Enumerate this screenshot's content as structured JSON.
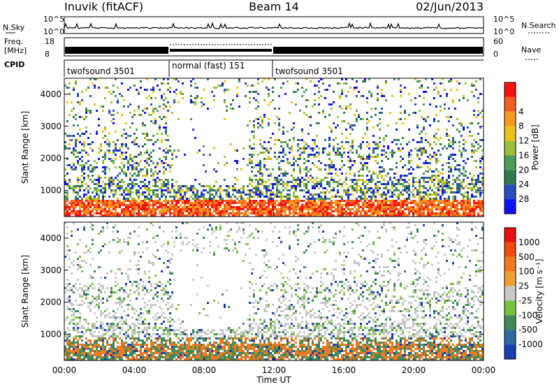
{
  "header": {
    "station": "Inuvik (fitACF)",
    "beam": "Beam 14",
    "date": "02/Jun/2013"
  },
  "status_panels": {
    "nsky_label": "N.Sky",
    "nsearch_label": "N.Search",
    "nsky_ticks": [
      "10^5",
      "10^0"
    ],
    "nsearch_ticks": [
      "10^5",
      "10^0"
    ],
    "freq_label_1": "Freq.",
    "freq_label_2": "[MHz]",
    "freq_ticks": [
      "18",
      "8"
    ],
    "nave_label": "Nave",
    "nave_ticks": [
      "60",
      "0"
    ],
    "cpid_label": "CPID",
    "cpid_segments": [
      {
        "label": "twofsound 3501",
        "start_hr": 0,
        "end_hr": 6
      },
      {
        "label": "normal (fast) 151",
        "start_hr": 6,
        "end_hr": 12
      },
      {
        "label": "twofsound 3501",
        "start_hr": 12,
        "end_hr": 24
      }
    ]
  },
  "x_axis": {
    "label": "Time UT",
    "ticks": [
      "00:00",
      "04:00",
      "08:00",
      "12:00",
      "16:00",
      "20:00",
      "00:00"
    ],
    "range_hr": [
      0,
      24
    ]
  },
  "chart_data": [
    {
      "type": "heatmap",
      "name": "power",
      "ylabel": "Slant Range [km]",
      "yticks": [
        1000,
        2000,
        3000,
        4000
      ],
      "ylim": [
        180,
        4500
      ],
      "xlim": [
        0,
        24
      ],
      "colorbar": {
        "label": "Power [dB]",
        "ticks": [
          4,
          8,
          12,
          16,
          20,
          24,
          28
        ],
        "colors": [
          "#1010ff",
          "#2a4fb8",
          "#2f7a52",
          "#4f9a5a",
          "#9bc13a",
          "#ecc01a",
          "#f29a22",
          "#f06020",
          "#ff1010"
        ]
      }
    },
    {
      "type": "heatmap",
      "name": "velocity",
      "ylabel": "Slant Range [km]",
      "yticks": [
        1000,
        2000,
        3000,
        4000
      ],
      "ylim": [
        180,
        4500
      ],
      "xlim": [
        0,
        24
      ],
      "colorbar": {
        "label": "Velocity [m s⁻¹]",
        "ticks": [
          "1000",
          "500",
          "100",
          "25",
          "-25",
          "-100",
          "-500",
          "-1000"
        ],
        "colors": [
          "#1a3fb0",
          "#2f6aa0",
          "#3f8a5a",
          "#79c13f",
          "#c8c8c8",
          "#f0a030",
          "#f07a20",
          "#f04a10",
          "#e81010"
        ]
      }
    }
  ]
}
